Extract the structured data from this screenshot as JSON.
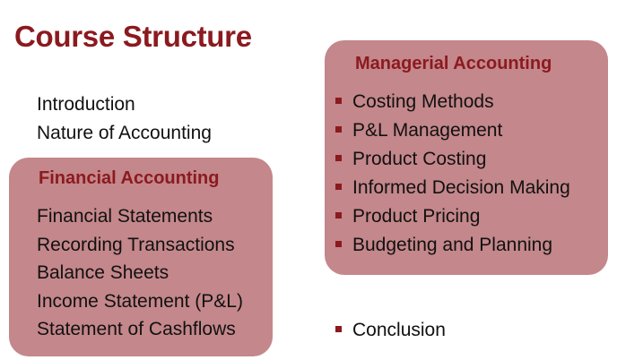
{
  "title": "Course Structure",
  "intro": {
    "items": [
      "Introduction",
      "Nature of Accounting"
    ]
  },
  "financial": {
    "title": "Financial Accounting",
    "items": [
      "Financial Statements",
      "Recording Transactions",
      "Balance Sheets",
      "Income Statement (P&L)",
      "Statement of Cashflows"
    ]
  },
  "managerial": {
    "title": "Managerial Accounting",
    "items": [
      "Costing Methods",
      "P&L Management",
      "Product Costing",
      "Informed Decision Making",
      "Product Pricing",
      "Budgeting and Planning"
    ]
  },
  "conclusion": {
    "label": "Conclusion"
  },
  "colors": {
    "accent": "#8b1a1f",
    "box_fill": "#c4878b",
    "text": "#111111",
    "background": "#ffffff"
  }
}
